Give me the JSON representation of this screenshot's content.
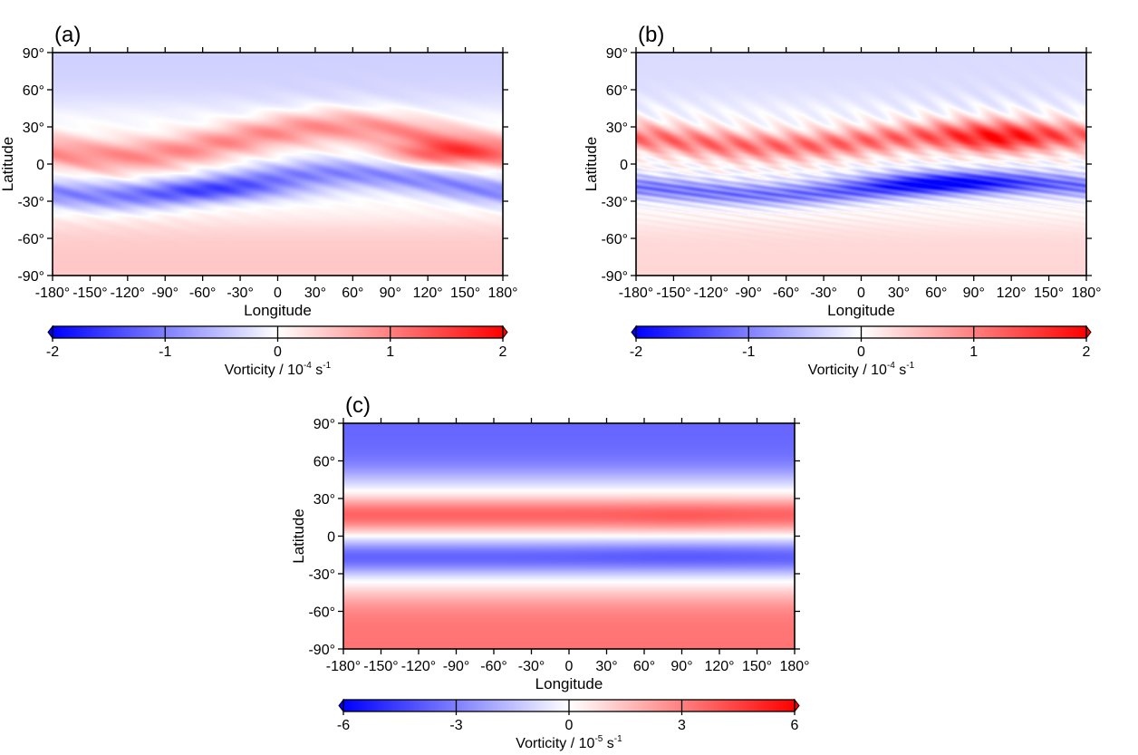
{
  "figure": {
    "colors": {
      "negative": "#0000ff",
      "zero": "#ffffff",
      "positive": "#ff0000",
      "frame": "#000000"
    }
  },
  "chart_data": [
    {
      "type": "heatmap",
      "panel_label": "(a)",
      "xlabel": "Longitude",
      "ylabel": "Latitude",
      "xlim": [
        -180,
        180
      ],
      "ylim": [
        -90,
        90
      ],
      "x_ticks": [
        -180,
        -150,
        -120,
        -90,
        -60,
        -30,
        0,
        30,
        60,
        90,
        120,
        150,
        180
      ],
      "y_ticks": [
        -90,
        -60,
        -30,
        0,
        30,
        60,
        90
      ],
      "x_tick_labels": [
        "-180°",
        "-150°",
        "-120°",
        "-90°",
        "-60°",
        "-30°",
        "0",
        "30°",
        "60°",
        "90°",
        "120°",
        "150°",
        "180°"
      ],
      "y_tick_labels": [
        "-90°",
        "-60°",
        "-30°",
        "0",
        "30°",
        "60°",
        "90°"
      ],
      "colorbar": {
        "label_text": "Vorticity / 10",
        "label_exponent": "-4",
        "label_unit": "s",
        "label_unit_exponent": "-1",
        "ticks": [
          -2,
          -1,
          0,
          1,
          2
        ],
        "tick_labels": [
          "-2",
          "-1",
          "0",
          "1",
          "2"
        ],
        "range": [
          -2,
          2
        ]
      },
      "field": {
        "pos_band_lat_center": 18,
        "pos_band_amp": 0.45,
        "pos_band_width": 13,
        "neg_band_lat_center": -17,
        "neg_band_amp": -0.48,
        "neg_band_width": 11,
        "wave_amplitude_deg": 12,
        "wave_phase_deg": -40,
        "north_polar_value": -0.18,
        "south_polar_value": 0.22,
        "hot_spot": {
          "lon": 130,
          "lat": 8,
          "value": 0.75
        },
        "cold_spot": {
          "lon": -40,
          "lat": -22,
          "value": -0.55
        }
      }
    },
    {
      "type": "heatmap",
      "panel_label": "(b)",
      "xlabel": "Longitude",
      "ylabel": "Latitude",
      "xlim": [
        -180,
        180
      ],
      "ylim": [
        -90,
        90
      ],
      "x_ticks": [
        -180,
        -150,
        -120,
        -90,
        -60,
        -30,
        0,
        30,
        60,
        90,
        120,
        150,
        180
      ],
      "y_ticks": [
        -90,
        -60,
        -30,
        0,
        30,
        60,
        90
      ],
      "x_tick_labels": [
        "-180°",
        "-150°",
        "-120°",
        "-90°",
        "-60°",
        "-30°",
        "0",
        "30°",
        "60°",
        "90°",
        "120°",
        "150°",
        "180°"
      ],
      "y_tick_labels": [
        "-90°",
        "-60°",
        "-30°",
        "0",
        "30°",
        "60°",
        "90°"
      ],
      "colorbar": {
        "label_text": "Vorticity / 10",
        "label_exponent": "-4",
        "label_unit": "s",
        "label_unit_exponent": "-1",
        "ticks": [
          -2,
          -1,
          0,
          1,
          2
        ],
        "tick_labels": [
          "-2",
          "-1",
          "0",
          "1",
          "2"
        ],
        "range": [
          -2,
          2
        ]
      },
      "field": {
        "pos_band_lat_center": 20,
        "pos_band_amp": 0.55,
        "pos_band_width": 11,
        "neg_band_lat_center": -20,
        "neg_band_amp": -0.55,
        "neg_band_width": 9,
        "wave_amplitude_deg": 6,
        "wave_phase_deg": 20,
        "north_polar_value": -0.14,
        "south_polar_value": 0.16,
        "hot_spot": {
          "lon": 110,
          "lat": 18,
          "value": 0.8
        },
        "cold_spot": {
          "lon": 60,
          "lat": -15,
          "value": -0.8
        }
      }
    },
    {
      "type": "heatmap",
      "panel_label": "(c)",
      "xlabel": "Longitude",
      "ylabel": "Latitude",
      "xlim": [
        -180,
        180
      ],
      "ylim": [
        -90,
        90
      ],
      "x_ticks": [
        -180,
        -150,
        -120,
        -90,
        -60,
        -30,
        0,
        30,
        60,
        90,
        120,
        150,
        180
      ],
      "y_ticks": [
        -90,
        -60,
        -30,
        0,
        30,
        60,
        90
      ],
      "x_tick_labels": [
        "-180°",
        "-150°",
        "-120°",
        "-90°",
        "-60°",
        "-30°",
        "0",
        "30°",
        "60°",
        "90°",
        "120°",
        "150°",
        "180°"
      ],
      "y_tick_labels": [
        "-90°",
        "-60°",
        "-30°",
        "0",
        "30°",
        "60°",
        "90°"
      ],
      "colorbar": {
        "label_text": "Vorticity / 10",
        "label_exponent": "-5",
        "label_unit": "s",
        "label_unit_exponent": "-1",
        "ticks": [
          -6,
          -3,
          0,
          3,
          6
        ],
        "tick_labels": [
          "-6",
          "-3",
          "0",
          "3",
          "6"
        ],
        "range": [
          -6,
          6
        ]
      },
      "field": {
        "pos_band_lat_center": 17,
        "pos_band_amp": 0.62,
        "pos_band_width": 14,
        "neg_band_lat_center": -17,
        "neg_band_amp": -0.62,
        "neg_band_width": 14,
        "wave_amplitude_deg": 0,
        "wave_phase_deg": 0,
        "north_polar_value": -0.6,
        "south_polar_value": 0.55,
        "hot_spot": {
          "lon": 90,
          "lat": 14,
          "value": 0.35
        },
        "cold_spot": {
          "lon": 90,
          "lat": -14,
          "value": -0.35
        }
      }
    }
  ]
}
